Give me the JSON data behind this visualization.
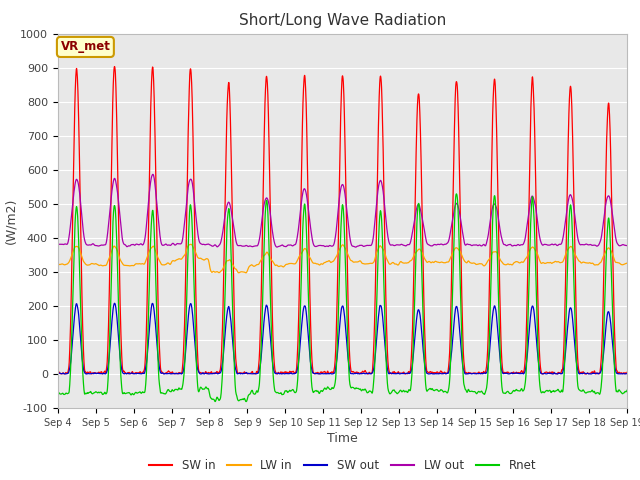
{
  "title": "Short/Long Wave Radiation",
  "xlabel": "Time",
  "ylabel": "(W/m2)",
  "ylim": [
    -100,
    1000
  ],
  "yticks": [
    -100,
    0,
    100,
    200,
    300,
    400,
    500,
    600,
    700,
    800,
    900,
    1000
  ],
  "annotation": "VR_met",
  "fig_facecolor": "#ffffff",
  "ax_facecolor": "#e8e8e8",
  "legend": [
    "SW in",
    "LW in",
    "SW out",
    "LW out",
    "Rnet"
  ],
  "colors": {
    "SW in": "#ff0000",
    "LW in": "#ffa500",
    "SW out": "#0000cc",
    "LW out": "#aa00aa",
    "Rnet": "#00cc00"
  },
  "days_labels": [
    "Sep 4",
    "Sep 5",
    "Sep 6",
    "Sep 7",
    "Sep 8",
    "Sep 9",
    "Sep 10",
    "Sep 11",
    "Sep 12",
    "Sep 13",
    "Sep 14",
    "Sep 15",
    "Sep 16",
    "Sep 17",
    "Sep 18",
    "Sep 19"
  ]
}
